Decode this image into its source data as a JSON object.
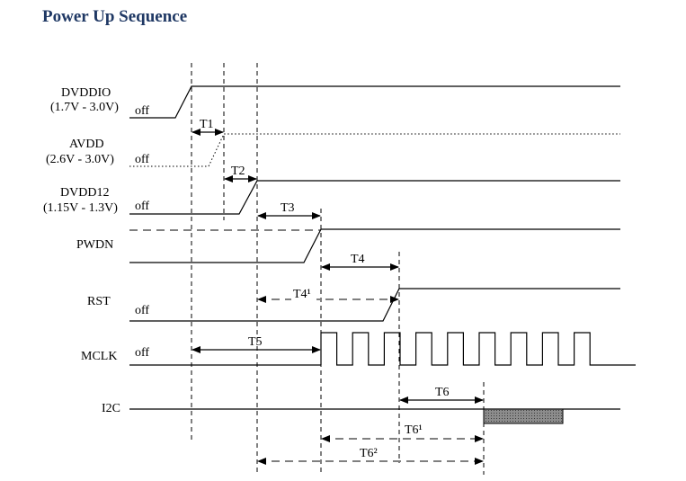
{
  "title": "Power Up Sequence",
  "signals": {
    "dvddio": {
      "name": "DVDDIO",
      "range": "(1.7V - 3.0V)",
      "state": "off"
    },
    "avdd": {
      "name": "AVDD",
      "range": "(2.6V - 3.0V)",
      "state": "off"
    },
    "dvdd12": {
      "name": "DVDD12",
      "range": "(1.15V - 1.3V)",
      "state": "off"
    },
    "pwdn": {
      "name": "PWDN"
    },
    "rst": {
      "name": "RST",
      "state": "off"
    },
    "mclk": {
      "name": "MCLK",
      "state": "off"
    },
    "i2c": {
      "name": "I2C"
    }
  },
  "timings": {
    "t1": "T1",
    "t2": "T2",
    "t3": "T3",
    "t4": "T4",
    "t4_1": "T4¹",
    "t5": "T5",
    "t6": "T6",
    "t6_1": "T6¹",
    "t6_2": "T6²"
  },
  "colors": {
    "title": "#1f3864",
    "i2c_block": "#8c8c8c"
  }
}
